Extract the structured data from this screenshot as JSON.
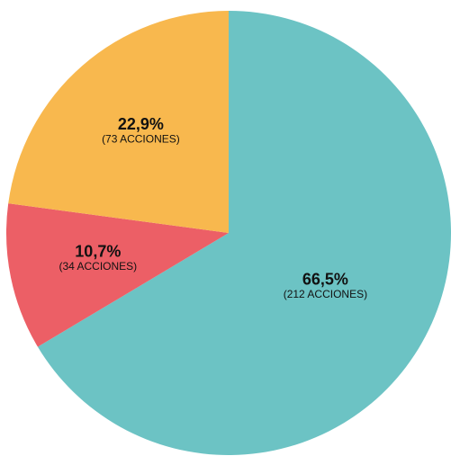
{
  "chart_data": {
    "type": "pie",
    "values": [
      66.5,
      10.7,
      22.9
    ],
    "value_labels": [
      "66,5%",
      "10,7%",
      "22,9%"
    ],
    "counts": [
      212,
      34,
      73
    ],
    "count_labels": [
      "(212 ACCIONES)",
      "(34 ACCIONES)",
      "(73 ACCIONES)"
    ],
    "colors": [
      "#6cc3c4",
      "#ec5f66",
      "#f8b84e"
    ]
  }
}
